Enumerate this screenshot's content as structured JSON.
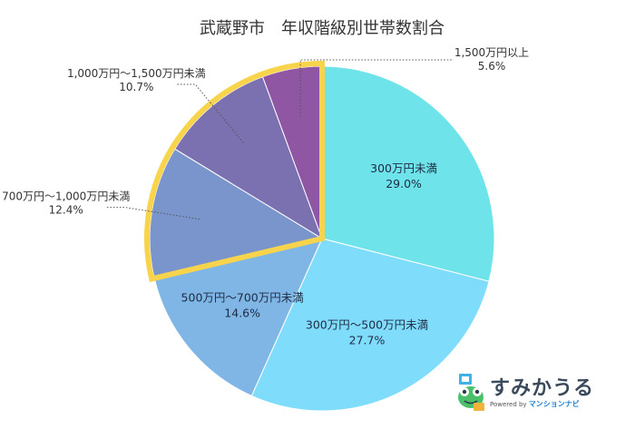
{
  "chart_data": {
    "type": "pie",
    "title": "武蔵野市　年収階級別世帯数割合",
    "slices": [
      {
        "label": "300万円未満",
        "value_label": "29.0%",
        "value": 29.0,
        "color": "#6ee3ea",
        "label_pos": "inside"
      },
      {
        "label": "300万円〜500万円未満",
        "value_label": "27.7%",
        "value": 27.7,
        "color": "#7fdcfb",
        "label_pos": "inside"
      },
      {
        "label": "500万円〜700万円未満",
        "value_label": "14.6%",
        "value": 14.6,
        "color": "#7fb6e6",
        "label_pos": "inside"
      },
      {
        "label": "700万円〜1,000万円未満",
        "value_label": "12.4%",
        "value": 12.4,
        "color": "#7a95cc",
        "label_pos": "outside-left",
        "highlight": true
      },
      {
        "label": "1,000万円〜1,500万円未満",
        "value_label": "10.7%",
        "value": 10.7,
        "color": "#7b70b0",
        "label_pos": "outside-left",
        "highlight": true
      },
      {
        "label": "1,500万円以上",
        "value_label": "5.6%",
        "value": 5.6,
        "color": "#8f56a3",
        "label_pos": "outside-right",
        "highlight": true
      }
    ],
    "highlight_color": "#f7d44c",
    "legend": "none"
  },
  "logo": {
    "name": "すみかうる",
    "powered_prefix": "Powered by",
    "powered_brand": "マンションナビ"
  }
}
